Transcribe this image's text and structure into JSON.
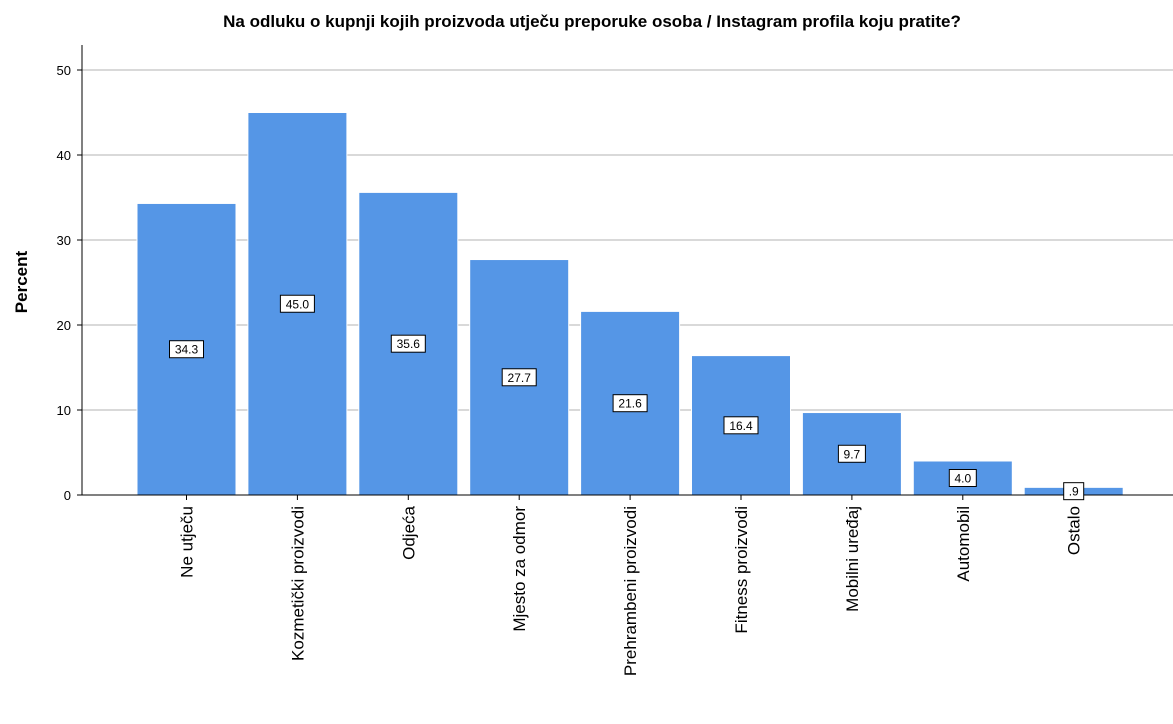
{
  "chart_data": {
    "type": "bar",
    "title": "Na odluku o kupnji kojih proizvoda utječu preporuke osoba / Instagram profila koju pratite?",
    "xlabel": "",
    "ylabel": "Percent",
    "ylim": [
      0,
      50
    ],
    "yticks": [
      "0",
      "10",
      "20",
      "30",
      "40",
      "50"
    ],
    "grid": true,
    "bar_color": "#5596E6",
    "categories": [
      "Ne utječu",
      "Kozmetički proizvodi",
      "Odjeća",
      "Mjesto za odmor",
      "Prehrambeni proizvodi",
      "Fitness proizvodi",
      "Mobilni uređaj",
      "Automobil",
      "Ostalo"
    ],
    "values": [
      34.3,
      45.0,
      35.6,
      27.7,
      21.6,
      16.4,
      9.7,
      4.0,
      0.9
    ],
    "data_labels": [
      "34.3",
      "45.0",
      "35.6",
      "27.7",
      "21.6",
      "16.4",
      "9.7",
      "4.0",
      ".9"
    ]
  }
}
